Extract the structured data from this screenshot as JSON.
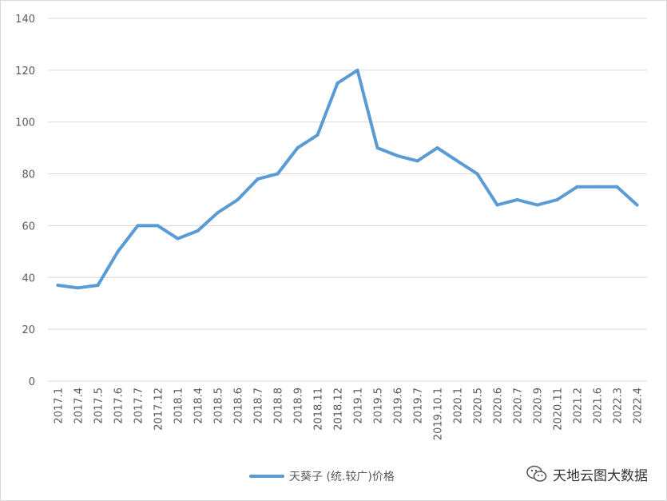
{
  "chart_data": {
    "type": "line",
    "title": "",
    "xlabel": "",
    "ylabel": "",
    "ylim": [
      0,
      140
    ],
    "yticks": [
      0,
      20,
      40,
      60,
      80,
      100,
      120,
      140
    ],
    "grid": true,
    "legend_position": "bottom",
    "categories": [
      "2017.1",
      "2017.4",
      "2017.5",
      "2017.6",
      "2017.7",
      "2017.12",
      "2018.1",
      "2018.4",
      "2018.5",
      "2018.6",
      "2018.7",
      "2018.8",
      "2018.9",
      "2018.11",
      "2018.12",
      "2019.1",
      "2019.5",
      "2019.6",
      "2019.7",
      "2019.10.1",
      "2020.1",
      "2020.5",
      "2020.6",
      "2020.7",
      "2020.9",
      "2020.11",
      "2021.2",
      "2021.6",
      "2022.3",
      "2022.4"
    ],
    "series": [
      {
        "name": "天葵子 (统.较广)价格",
        "color": "#5b9bd5",
        "values": [
          37,
          36,
          37,
          50,
          60,
          60,
          55,
          58,
          65,
          70,
          78,
          80,
          90,
          95,
          115,
          120,
          90,
          87,
          85,
          90,
          85,
          80,
          68,
          70,
          68,
          70,
          75,
          75,
          75,
          68
        ]
      }
    ]
  },
  "watermark": {
    "text": "天地云图大数据",
    "icon": "wechat-icon"
  },
  "colors": {
    "grid": "#d9d9d9",
    "axis_text": "#595959"
  }
}
